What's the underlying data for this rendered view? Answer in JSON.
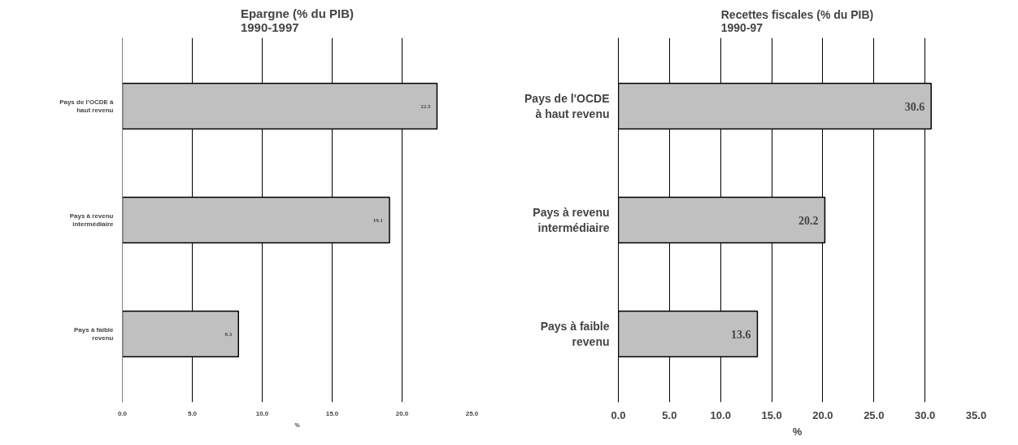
{
  "chart_data": [
    {
      "type": "bar",
      "orientation": "horizontal",
      "title": "Epargne (% du PIB)\n1990-1997",
      "xlabel": "%",
      "categories": [
        "Pays de l'OCDE à\nhaut revenu",
        "Pays à revenu\nintermédiaire",
        "Pays à faible\nrevenu"
      ],
      "values": [
        22.5,
        19.1,
        8.3
      ],
      "color": "#c0c0c0",
      "data_labels": true,
      "grid": "x",
      "xlim": [
        0,
        25
      ],
      "xticks": [
        {
          "value": 0,
          "label": "0.0"
        },
        {
          "value": 5,
          "label": "5.0"
        },
        {
          "value": 10,
          "label": "10.0"
        },
        {
          "value": 15,
          "label": "15.0"
        },
        {
          "value": 20,
          "label": "20.0"
        },
        {
          "value": 25,
          "label": "25.0"
        }
      ]
    },
    {
      "type": "bar",
      "orientation": "horizontal",
      "title": "Recettes fiscales (% du PIB)\n1990-97",
      "xlabel": "%",
      "categories": [
        "Pays de l'OCDE\nà haut revenu",
        "Pays à revenu\nintermédiaire",
        "Pays à faible\nrevenu"
      ],
      "values": [
        30.6,
        20.2,
        13.6
      ],
      "color": "#c0c0c0",
      "data_labels": true,
      "grid": "x",
      "xlim": [
        0,
        35
      ],
      "xticks": [
        {
          "value": 0,
          "label": "0.0"
        },
        {
          "value": 5,
          "label": "5.0"
        },
        {
          "value": 10,
          "label": "10.0"
        },
        {
          "value": 15,
          "label": "15.0"
        },
        {
          "value": 20,
          "label": "20.0"
        },
        {
          "value": 25,
          "label": "25.0"
        },
        {
          "value": 30,
          "label": "30.0"
        },
        {
          "value": 35,
          "label": "35.0"
        }
      ]
    }
  ]
}
